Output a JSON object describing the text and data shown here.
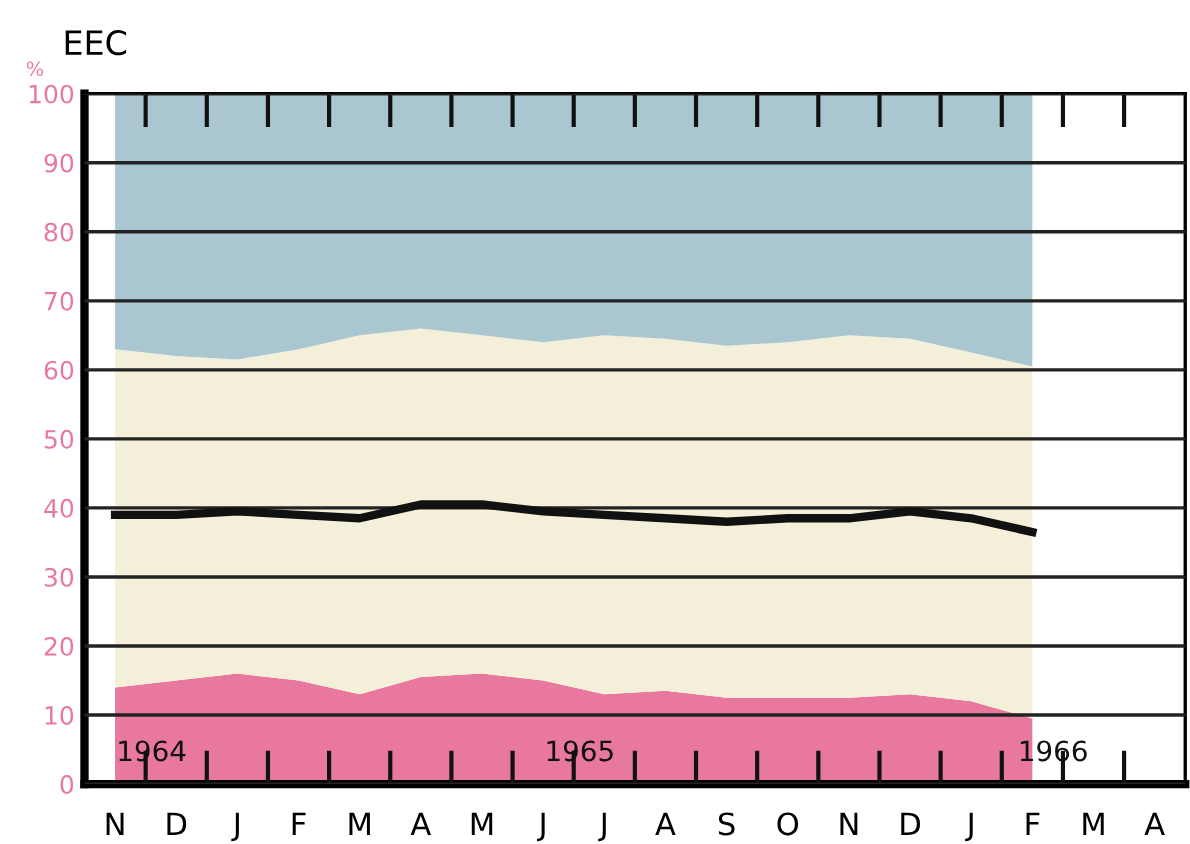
{
  "chart_data": {
    "type": "area",
    "title": "EEC",
    "ylabel": "%",
    "categories": [
      "N",
      "D",
      "J",
      "F",
      "M",
      "A",
      "M",
      "J",
      "J",
      "A",
      "S",
      "O",
      "N",
      "D",
      "J",
      "F",
      "M",
      "A"
    ],
    "stacked": true,
    "ylim": [
      0,
      100
    ],
    "yticks": [
      0,
      10,
      20,
      30,
      40,
      50,
      60,
      70,
      80,
      90,
      100
    ],
    "grid": "y",
    "series": [
      {
        "color": "#e8789e",
        "values": [
          14,
          15,
          16,
          15,
          13,
          15.5,
          16,
          15,
          13,
          13.5,
          12.5,
          12.5,
          12.5,
          13,
          12,
          9.5,
          null,
          null
        ]
      },
      {
        "color": "#f4efd8",
        "values": [
          49,
          47,
          45.5,
          48,
          52,
          50.5,
          49,
          49,
          52,
          51,
          51,
          51.5,
          52.5,
          51.5,
          50.5,
          51,
          null,
          null
        ]
      },
      {
        "color": "#a9c6d1",
        "values": [
          37,
          38,
          38.5,
          37,
          35,
          34,
          35,
          36,
          35,
          35.5,
          36.5,
          36,
          35,
          35.5,
          37.5,
          39.5,
          null,
          null
        ]
      },
      {
        "type": "line",
        "color": "#111111",
        "values": [
          39,
          39,
          39.5,
          39,
          38.5,
          40.5,
          40.5,
          39.5,
          39,
          38.5,
          38,
          38.5,
          38.5,
          39.5,
          38.5,
          36.5,
          null,
          null
        ]
      }
    ],
    "annotations": [
      "1964",
      "1965",
      "1966"
    ]
  }
}
